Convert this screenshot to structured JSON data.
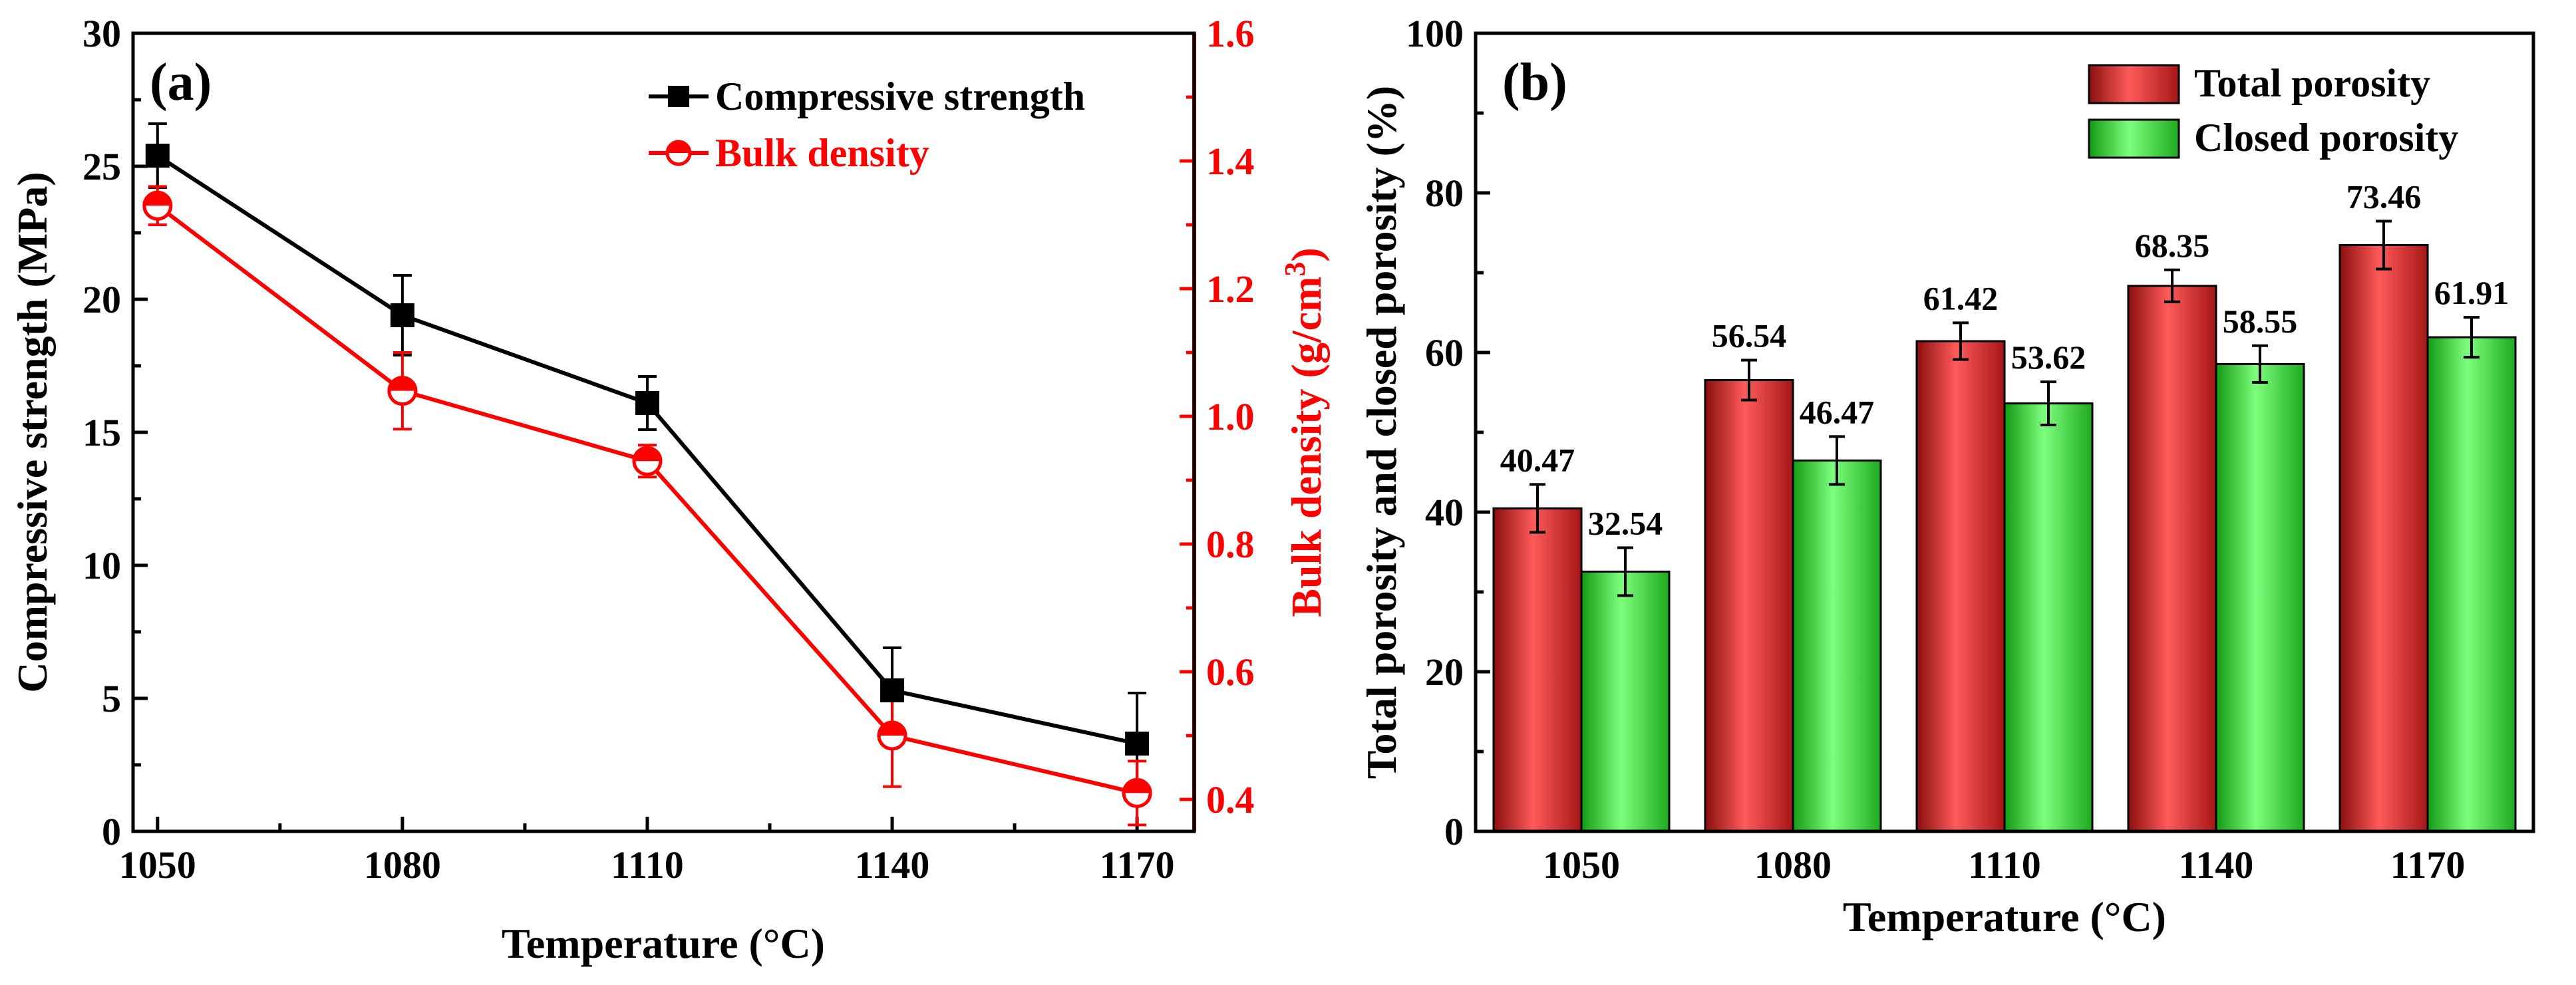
{
  "chart_data": [
    {
      "type": "line",
      "panel_label": "(a)",
      "xlabel": "Temperature (°C)",
      "x": [
        1050,
        1080,
        1110,
        1140,
        1170
      ],
      "xticks": [
        "1050",
        "1080",
        "1110",
        "1140",
        "1170"
      ],
      "ylabel": "Compressive strength (MPa)",
      "ylim": [
        0,
        30
      ],
      "yticks": [
        "0",
        "5",
        "10",
        "15",
        "20",
        "25",
        "30"
      ],
      "y2label_main": "Bulk density (g/cm",
      "y2label_sup": "3",
      "y2label_close": ")",
      "y2lim": [
        0.35,
        1.6
      ],
      "y2ticks": [
        "0.4",
        "0.6",
        "0.8",
        "1.0",
        "1.2",
        "1.4",
        "1.6"
      ],
      "legend_position": "top-right",
      "series": [
        {
          "name": "Compressive strength",
          "axis": "left",
          "color": "#000000",
          "marker": "square",
          "values": [
            25.4,
            19.4,
            16.1,
            5.3,
            3.3
          ],
          "errors": [
            1.2,
            1.5,
            1.0,
            1.6,
            1.9
          ]
        },
        {
          "name": "Bulk density",
          "axis": "right",
          "color": "#ff0000",
          "marker": "half-circle",
          "values": [
            1.33,
            1.04,
            0.93,
            0.5,
            0.41
          ],
          "errors": [
            0.03,
            0.06,
            0.025,
            0.08,
            0.05
          ]
        }
      ]
    },
    {
      "type": "bar",
      "panel_label": "(b)",
      "xlabel": "Temperature (°C)",
      "categories": [
        "1050",
        "1080",
        "1110",
        "1140",
        "1170"
      ],
      "ylabel": "Total porosity and closed porosity (%)",
      "ylim": [
        0,
        100
      ],
      "yticks": [
        "0",
        "20",
        "40",
        "60",
        "80",
        "100"
      ],
      "legend_position": "top-right",
      "series": [
        {
          "name": "Total porosity",
          "color": "#e53935",
          "values": [
            40.47,
            56.54,
            61.42,
            68.35,
            73.46
          ],
          "labels": [
            "40.47",
            "56.54",
            "61.42",
            "68.35",
            "73.46"
          ],
          "errors": [
            3.0,
            2.5,
            2.3,
            2.0,
            3.0
          ]
        },
        {
          "name": "Closed porosity",
          "color": "#33dd33",
          "values": [
            32.54,
            46.47,
            53.62,
            58.55,
            61.91
          ],
          "labels": [
            "32.54",
            "46.47",
            "53.62",
            "58.55",
            "61.91"
          ],
          "errors": [
            3.0,
            3.0,
            2.7,
            2.3,
            2.5
          ]
        }
      ]
    }
  ]
}
